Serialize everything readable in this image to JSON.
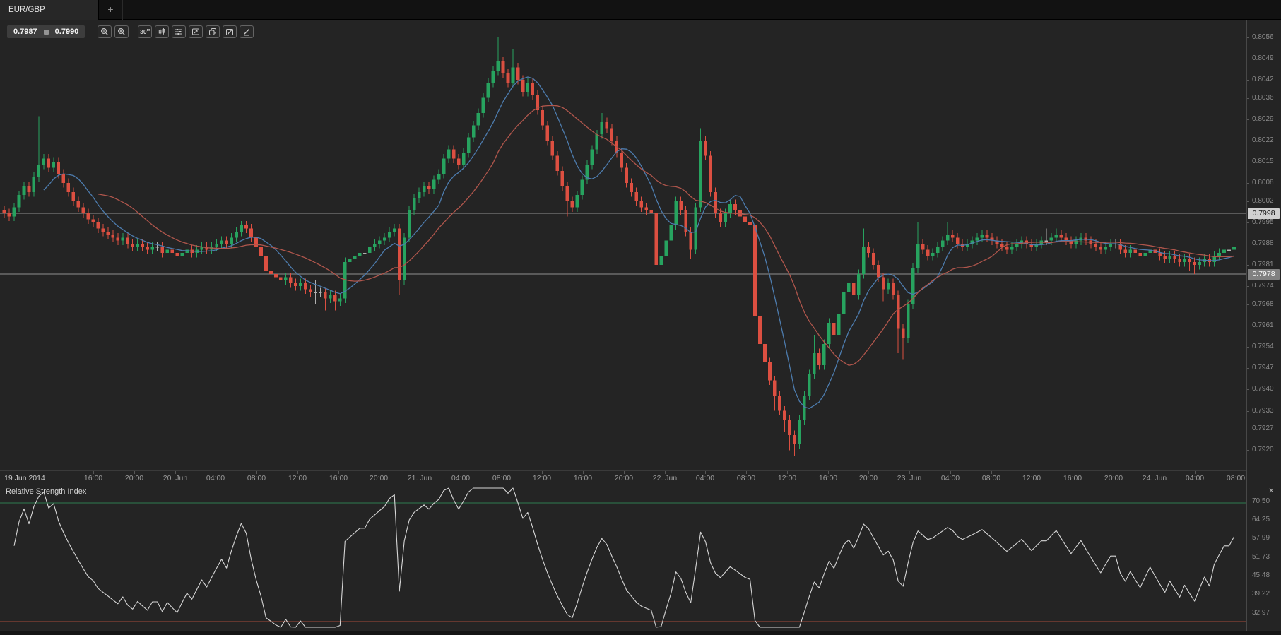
{
  "tabbar": {
    "active_tab": "EUR/GBP",
    "add_button": "+"
  },
  "toolbar": {
    "bid": "0.7987",
    "ask": "0.7990",
    "buttons": [
      {
        "name": "zoom-out"
      },
      {
        "name": "zoom-in"
      },
      {
        "name": "timeframe",
        "label": "30",
        "sup": "m"
      },
      {
        "name": "chart-type-candles"
      },
      {
        "name": "indicators"
      },
      {
        "name": "chart-mode"
      },
      {
        "name": "duplicate-chart"
      },
      {
        "name": "edit-chart"
      },
      {
        "name": "draw-tools"
      }
    ]
  },
  "price_axis": {
    "ticks": [
      "0.8056",
      "0.8049",
      "0.8042",
      "0.8036",
      "0.8029",
      "0.8022",
      "0.8015",
      "0.8008",
      "0.8002",
      "0.7995",
      "0.7988",
      "0.7981",
      "0.7974",
      "0.7968",
      "0.7961",
      "0.7954",
      "0.7947",
      "0.7940",
      "0.7933",
      "0.7927",
      "0.7920"
    ],
    "line_labels": [
      {
        "text": "0.7998",
        "price": 0.7998,
        "style": "light"
      },
      {
        "text": "0.7978",
        "price": 0.7978,
        "style": "gray"
      }
    ]
  },
  "time_axis": {
    "ticks": [
      [
        27,
        "19 Jun 2014"
      ],
      [
        132,
        "16:00"
      ],
      [
        190,
        "20:00"
      ],
      [
        248,
        "20. Jun"
      ],
      [
        305,
        "04:00"
      ],
      [
        363,
        "08:00"
      ],
      [
        421,
        "12:00"
      ],
      [
        479,
        "16:00"
      ],
      [
        536,
        "20:00"
      ],
      [
        594,
        "21. Jun"
      ],
      [
        652,
        "04:00"
      ],
      [
        710,
        "08:00"
      ],
      [
        767,
        "12:00"
      ],
      [
        825,
        "16:00"
      ],
      [
        883,
        "20:00"
      ],
      [
        941,
        "22. Jun"
      ],
      [
        998,
        "04:00"
      ],
      [
        1056,
        "08:00"
      ],
      [
        1114,
        "12:00"
      ],
      [
        1172,
        "16:00"
      ],
      [
        1229,
        "20:00"
      ],
      [
        1287,
        "23. Jun"
      ],
      [
        1345,
        "04:00"
      ],
      [
        1403,
        "08:00"
      ],
      [
        1460,
        "12:00"
      ],
      [
        1518,
        "16:00"
      ],
      [
        1576,
        "20:00"
      ],
      [
        1634,
        "24. Jun"
      ],
      [
        1691,
        "04:00"
      ],
      [
        1749,
        "08:00"
      ]
    ]
  },
  "rsi_panel": {
    "close_icon": "✕"
  },
  "colors": {
    "background": "#242424",
    "panel_border": "#3a3a3a",
    "grid_line": "#909090",
    "candle_up": "#27a35f",
    "candle_down": "#dc4f41",
    "candle_doji": "#b0b0b0",
    "ma_fast": "#4d7cae",
    "ma_slow": "#b0564c",
    "rsi_line": "#d6d6d6",
    "rsi_upper_line": "#2e7d4f",
    "rsi_lower_line": "#a34a3a",
    "axis_text": "#8a8a8a",
    "label_light_bg": "#d0d0d0",
    "label_gray_bg": "#818181"
  },
  "chart_data": [
    {
      "type": "candlestick",
      "symbol": "EUR/GBP",
      "timeframe": "30m",
      "price_encoding": "price = 0.7900 + pips/10000",
      "first_open_pips": 99,
      "default_wick_pips": 1.5,
      "closes_pips": [
        98,
        97,
        100,
        104,
        107,
        105,
        110,
        114,
        116,
        113,
        115,
        111,
        108,
        105,
        102,
        100,
        98,
        96,
        95,
        93,
        92,
        91,
        90,
        89,
        90,
        88,
        87,
        88,
        87,
        86,
        87,
        87,
        85,
        86,
        85,
        84,
        85,
        86,
        85,
        86,
        87,
        86,
        87,
        88,
        89,
        88,
        90,
        92,
        94,
        93,
        90,
        87,
        84,
        79,
        78,
        77,
        76,
        77,
        75,
        74,
        75,
        73,
        72,
        72,
        72,
        70,
        71,
        69,
        70,
        82,
        83,
        84,
        85,
        85,
        87,
        88,
        89,
        90,
        92,
        93,
        76,
        90,
        99,
        103,
        105,
        107,
        106,
        109,
        111,
        116,
        119,
        116,
        114,
        118,
        123,
        127,
        131,
        136,
        141,
        145,
        148,
        144,
        141,
        146,
        142,
        138,
        141,
        137,
        132,
        127,
        122,
        117,
        112,
        107,
        102,
        100,
        104,
        109,
        114,
        119,
        124,
        128,
        126,
        122,
        118,
        113,
        108,
        105,
        102,
        100,
        99,
        98,
        81,
        84,
        89,
        94,
        102,
        99,
        92,
        86,
        100,
        122,
        117,
        105,
        98,
        95,
        98,
        101,
        99,
        97,
        95,
        94,
        64,
        55,
        49,
        43,
        38,
        33,
        30,
        25,
        22,
        30,
        38,
        45,
        52,
        48,
        55,
        62,
        58,
        65,
        72,
        75,
        71,
        78,
        87,
        85,
        81,
        77,
        73,
        75,
        71,
        60,
        57,
        68,
        80,
        88,
        86,
        84,
        85,
        87,
        89,
        91,
        90,
        88,
        87,
        88,
        89,
        90,
        91,
        90,
        89,
        88,
        87,
        86,
        87,
        88,
        89,
        88,
        87,
        88,
        89,
        89,
        90,
        91,
        90,
        89,
        88,
        89,
        90,
        89,
        88,
        87,
        86,
        87,
        88,
        88,
        86,
        85,
        86,
        85,
        84,
        85,
        86,
        85,
        84,
        83,
        84,
        83,
        82,
        83,
        82,
        81,
        82,
        83,
        82,
        84,
        85,
        86,
        86,
        87
      ],
      "wick_high_overrides": {
        "7": 130,
        "63": 76,
        "73": 89,
        "100": 156,
        "103": 152,
        "121": 131,
        "141": 126,
        "164": 58,
        "174": 93,
        "185": 95,
        "191": 95,
        "211": 93,
        "213": 93
      },
      "wick_low_overrides": {
        "53": 77,
        "63": 68,
        "65": 66,
        "67": 66,
        "73": 81,
        "80": 71,
        "114": 97,
        "132": 78,
        "139": 83,
        "156": 33,
        "158": 26,
        "159": 20,
        "160": 18,
        "178": 69,
        "181": 52,
        "182": 50,
        "240": 79,
        "241": 78
      },
      "horizontal_lines": [
        {
          "price": 0.7998
        },
        {
          "price": 0.7978
        }
      ],
      "ylim": [
        0.7917,
        0.8061
      ],
      "indicators": [
        {
          "name": "MA fast",
          "type": "sma",
          "period": 9,
          "color": "#4d7cae"
        },
        {
          "name": "MA slow",
          "type": "sma",
          "period": 20,
          "color": "#b0564c"
        }
      ],
      "grid": "two horizontal price lines only"
    },
    {
      "type": "line",
      "title": "Relative Strength Index",
      "derived_from": "RSI(14, Wilder) of closes_pips above",
      "seed_gain": 7,
      "seed_loss": 7,
      "levels": [
        {
          "value": 70,
          "color": "#2e7d4f"
        },
        {
          "value": 30,
          "color": "#a34a3a"
        }
      ],
      "y_axis_ticks": [
        "70.50",
        "64.25",
        "57.99",
        "51.73",
        "45.48",
        "39.22",
        "32.97"
      ],
      "legend_position": "top-left"
    }
  ]
}
